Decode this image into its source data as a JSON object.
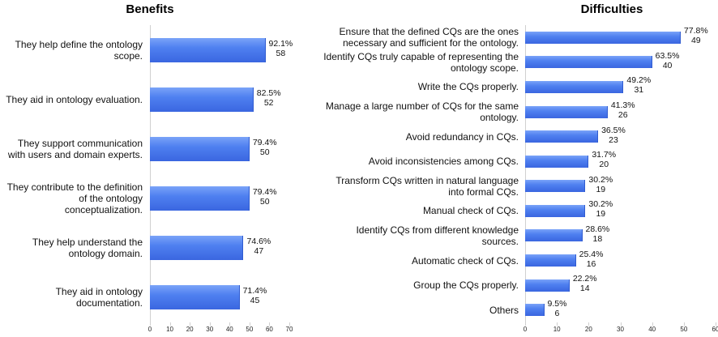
{
  "chart_data": [
    {
      "type": "bar",
      "orientation": "horizontal",
      "title": "Benefits",
      "categories": [
        "They help define the ontology scope.",
        "They aid in ontology evaluation.",
        "They support communication with users and domain experts.",
        "They contribute to the definition of the ontology conceptualization.",
        "They help understand the ontology domain.",
        "They aid in ontology documentation."
      ],
      "values": [
        58,
        52,
        50,
        50,
        47,
        45
      ],
      "percent_labels": [
        "92.1%",
        "82.5%",
        "79.4%",
        "79.4%",
        "74.6%",
        "71.4%"
      ],
      "xlim": [
        0,
        70
      ],
      "xticks": [
        0,
        10,
        20,
        30,
        40,
        50,
        60,
        70
      ],
      "color": "#4f80f0"
    },
    {
      "type": "bar",
      "orientation": "horizontal",
      "title": "Difficulties",
      "categories": [
        "Ensure that the defined CQs are the ones necessary and sufficient for the ontology.",
        "Identify CQs truly capable of representing the ontology scope.",
        "Write the CQs properly.",
        "Manage a large number of CQs for the same ontology.",
        "Avoid redundancy in CQs.",
        "Avoid inconsistencies among CQs.",
        "Transform CQs written in natural language into formal CQs.",
        "Manual check of CQs.",
        "Identify CQs from different knowledge sources.",
        "Automatic check of CQs.",
        "Group the CQs properly.",
        "Others"
      ],
      "values": [
        49,
        40,
        31,
        26,
        23,
        20,
        19,
        19,
        18,
        16,
        14,
        6
      ],
      "percent_labels": [
        "77.8%",
        "63.5%",
        "49.2%",
        "41.3%",
        "36.5%",
        "31.7%",
        "30.2%",
        "30.2%",
        "28.6%",
        "25.4%",
        "22.2%",
        "9.5%"
      ],
      "xlim": [
        0,
        60
      ],
      "xticks": [
        0,
        10,
        20,
        30,
        40,
        50,
        60
      ],
      "color": "#4f80f0"
    }
  ]
}
